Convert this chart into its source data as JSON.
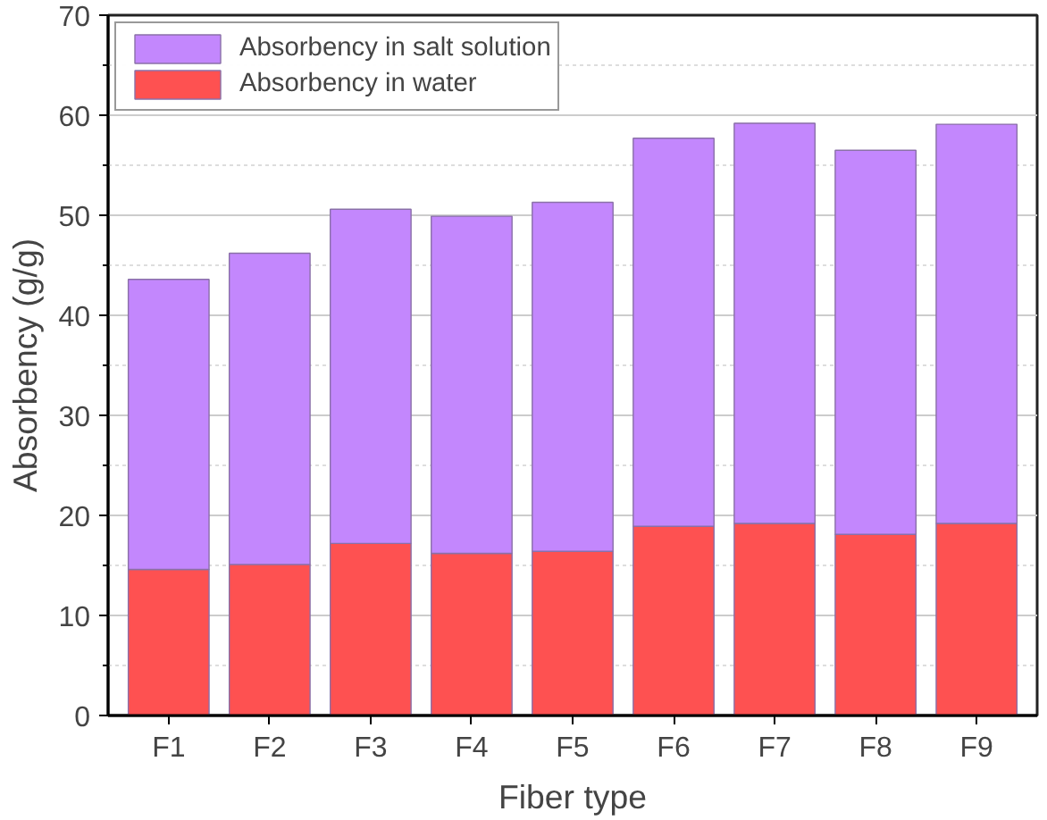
{
  "chart_data": {
    "type": "bar",
    "stacked": true,
    "xlabel": "Fiber type",
    "ylabel": "Absorbency (g/g)",
    "categories": [
      "F1",
      "F2",
      "F3",
      "F4",
      "F5",
      "F6",
      "F7",
      "F8",
      "F9"
    ],
    "series": [
      {
        "name": "Absorbency in water",
        "color": "#fe5151",
        "values": [
          14.6,
          15.1,
          17.2,
          16.2,
          16.4,
          18.9,
          19.2,
          18.1,
          19.2
        ]
      },
      {
        "name": "Absorbency in salt solution",
        "color": "#c387fd",
        "values": [
          29.0,
          31.1,
          33.4,
          33.7,
          34.9,
          38.8,
          40.0,
          38.4,
          39.9
        ]
      }
    ],
    "ylim": [
      0,
      70
    ],
    "yticks": [
      0,
      {
        "value": 5,
        "label": null
      },
      10,
      {
        "value": 15,
        "label": null
      },
      20,
      {
        "value": 25,
        "label": null
      },
      30,
      {
        "value": 35,
        "label": null
      },
      40,
      {
        "value": 45,
        "label": null
      },
      50,
      {
        "value": 55,
        "label": null
      },
      60,
      {
        "value": 65,
        "label": null
      },
      70
    ],
    "grid": "y",
    "legend": "top left"
  }
}
